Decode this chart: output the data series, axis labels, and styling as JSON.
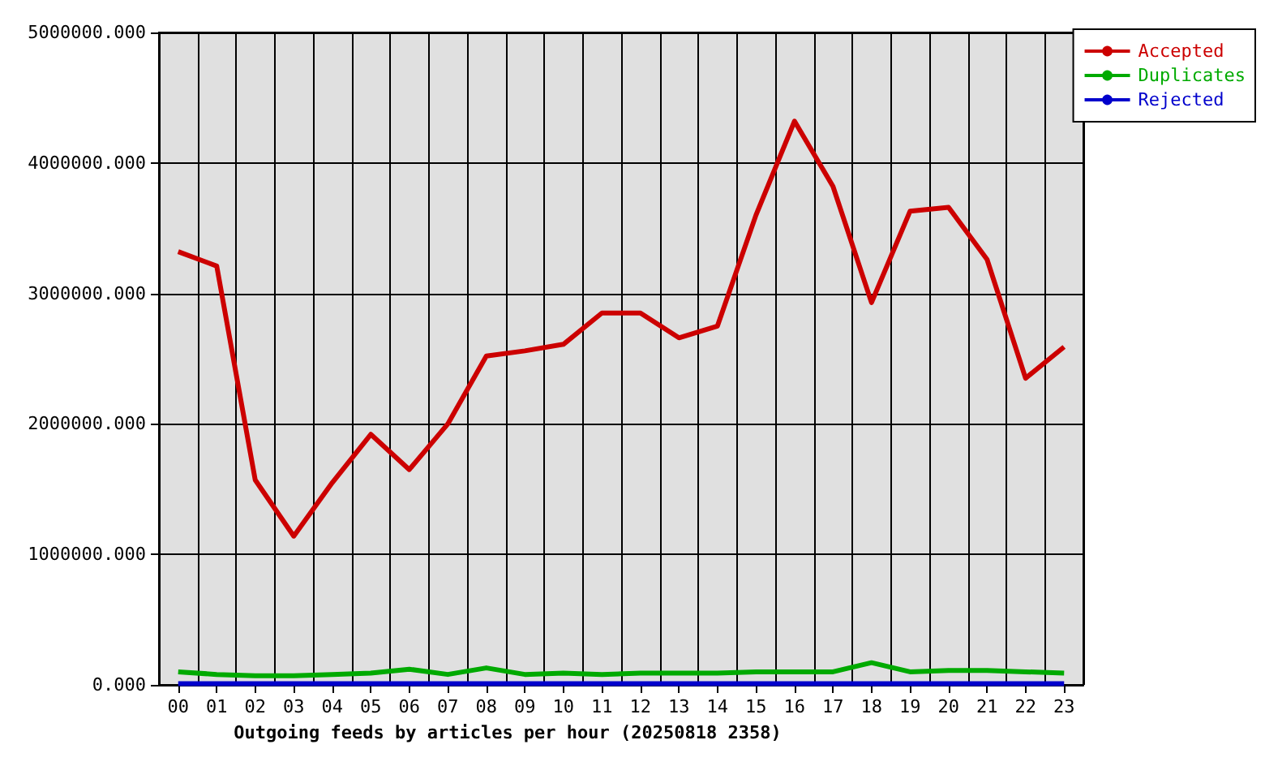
{
  "chart_data": {
    "type": "line",
    "xlabel": "Outgoing feeds by articles per hour (20250818 2358)",
    "categories": [
      "00",
      "01",
      "02",
      "03",
      "04",
      "05",
      "06",
      "07",
      "08",
      "09",
      "10",
      "11",
      "12",
      "13",
      "14",
      "15",
      "16",
      "17",
      "18",
      "19",
      "20",
      "21",
      "22",
      "23"
    ],
    "series": [
      {
        "name": "Accepted",
        "color": "#cc0000",
        "values": [
          3320000,
          3210000,
          1570000,
          1140000,
          1550000,
          1920000,
          1650000,
          2000000,
          2520000,
          2560000,
          2610000,
          2850000,
          2850000,
          2660000,
          2750000,
          3600000,
          4320000,
          3820000,
          2930000,
          3630000,
          3660000,
          3260000,
          2350000,
          2590000
        ]
      },
      {
        "name": "Duplicates",
        "color": "#00aa00",
        "values": [
          100000,
          80000,
          70000,
          70000,
          80000,
          90000,
          120000,
          80000,
          130000,
          80000,
          90000,
          80000,
          90000,
          90000,
          90000,
          100000,
          100000,
          100000,
          170000,
          100000,
          110000,
          110000,
          100000,
          90000
        ]
      },
      {
        "name": "Rejected",
        "color": "#0000cc",
        "values": [
          10000,
          10000,
          10000,
          10000,
          10000,
          10000,
          10000,
          10000,
          10000,
          10000,
          10000,
          10000,
          10000,
          10000,
          10000,
          10000,
          10000,
          10000,
          10000,
          10000,
          10000,
          10000,
          10000,
          10000
        ]
      }
    ],
    "ylim": [
      0,
      5000000
    ],
    "yticks": [
      {
        "value": 0,
        "label": "0.000"
      },
      {
        "value": 1000000,
        "label": "1000000.000"
      },
      {
        "value": 2000000,
        "label": "2000000.000"
      },
      {
        "value": 3000000,
        "label": "3000000.000"
      },
      {
        "value": 4000000,
        "label": "4000000.000"
      },
      {
        "value": 5000000,
        "label": "5000000.000"
      }
    ],
    "grid": true,
    "legend": "top right"
  }
}
